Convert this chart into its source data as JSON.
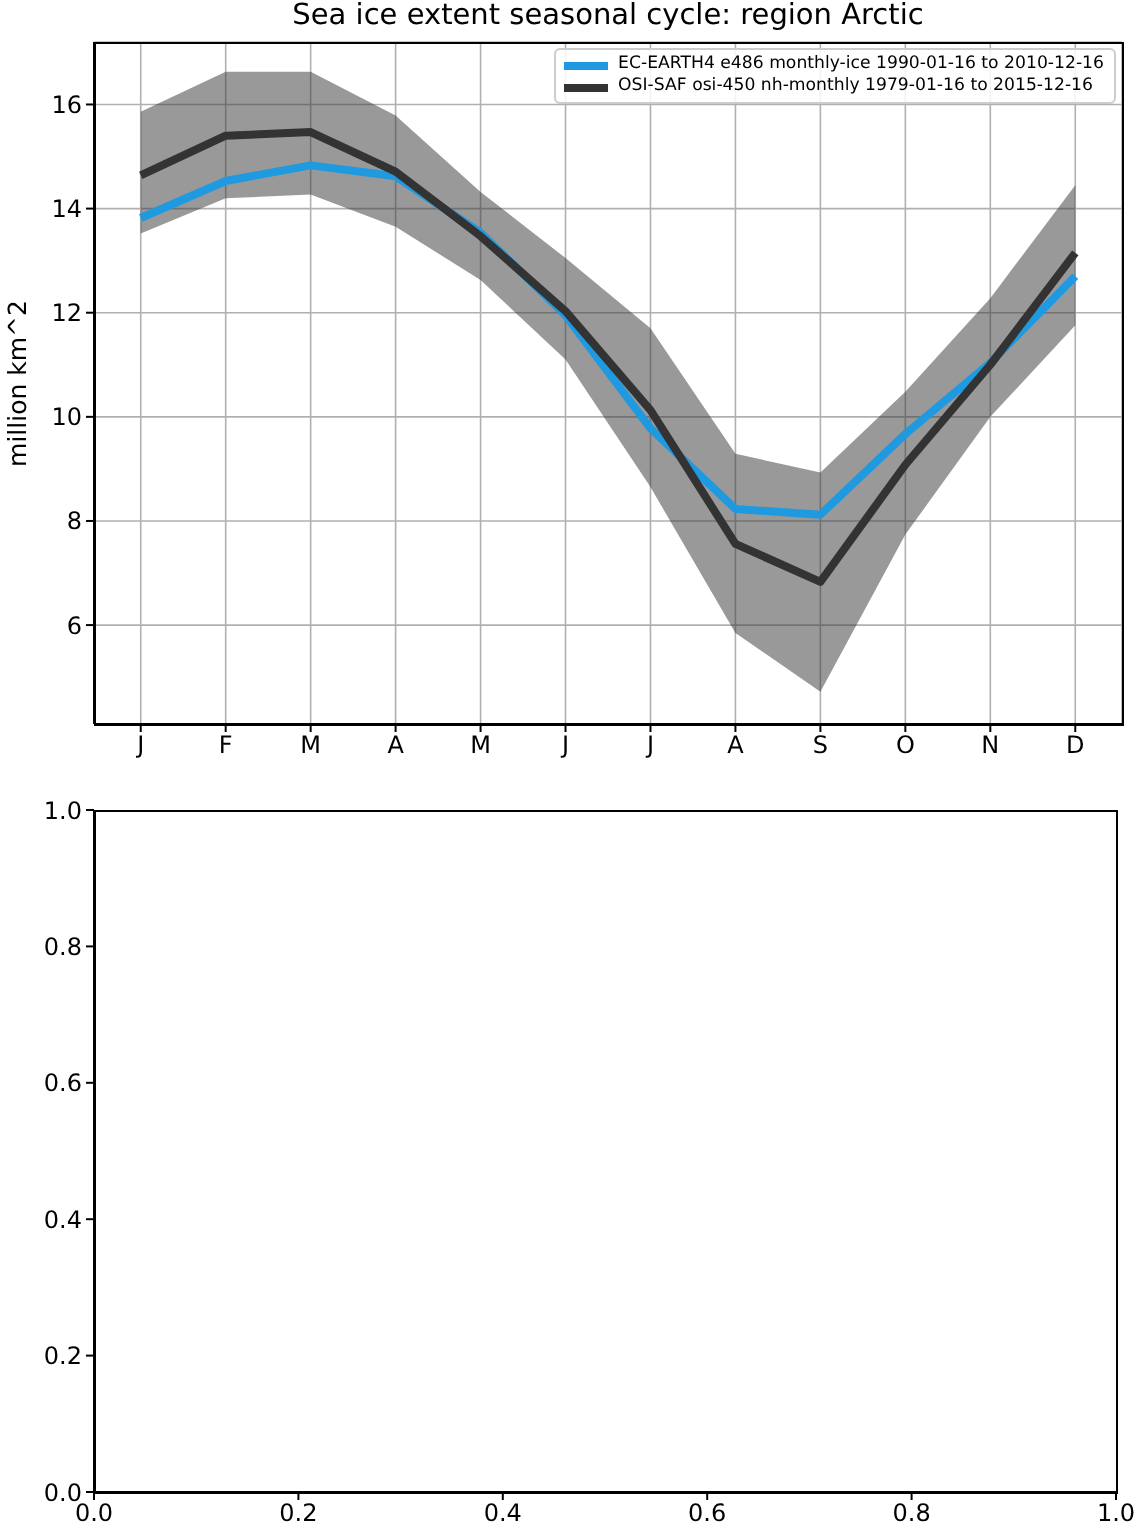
{
  "chart_data": [
    {
      "type": "line",
      "title": "Sea ice extent seasonal cycle: region Arctic",
      "ylabel": "million km^2",
      "categories": [
        "J",
        "F",
        "M",
        "A",
        "M",
        "J",
        "J",
        "A",
        "S",
        "O",
        "N",
        "D"
      ],
      "series": [
        {
          "name": "EC-EARTH4 e486 monthly-ice 1990-01-16 to 2010-12-16",
          "color": "#1f9ae0",
          "values": [
            13.82,
            14.53,
            14.83,
            14.62,
            13.54,
            11.95,
            9.78,
            8.23,
            8.12,
            9.67,
            11.04,
            12.7
          ]
        },
        {
          "name": "OSI-SAF osi-450 nh-monthly 1979-01-16 to 2015-12-16",
          "color": "#333333",
          "values": [
            14.64,
            15.4,
            15.47,
            14.71,
            13.47,
            12.03,
            10.13,
            7.56,
            6.83,
            9.08,
            11.0,
            13.15
          ],
          "lower": [
            13.52,
            14.2,
            14.27,
            13.65,
            12.63,
            11.1,
            8.65,
            5.85,
            4.72,
            7.74,
            10.0,
            11.76
          ],
          "upper": [
            15.86,
            16.63,
            16.63,
            15.79,
            14.32,
            13.05,
            11.7,
            9.29,
            8.93,
            10.48,
            12.28,
            14.45
          ]
        }
      ],
      "ylim": [
        4.1,
        17.2
      ],
      "yticks": [
        6,
        8,
        10,
        12,
        14,
        16
      ],
      "grid": true,
      "legend": "top right"
    },
    {
      "type": "line",
      "xlim": [
        0,
        1
      ],
      "ylim": [
        0,
        1
      ],
      "xticks": [
        {
          "value": 0,
          "label": "0.0"
        },
        {
          "value": 0.2,
          "label": "0.2"
        },
        {
          "value": 0.4,
          "label": "0.4"
        },
        {
          "value": 0.6,
          "label": "0.6"
        },
        {
          "value": 0.8,
          "label": "0.8"
        },
        {
          "value": 1,
          "label": "1.0"
        }
      ],
      "yticks": [
        {
          "value": 0,
          "label": "0.0"
        },
        {
          "value": 0.2,
          "label": "0.2"
        },
        {
          "value": 0.4,
          "label": "0.4"
        },
        {
          "value": 0.6,
          "label": "0.6"
        },
        {
          "value": 0.8,
          "label": "0.8"
        },
        {
          "value": 1,
          "label": "1.0"
        }
      ]
    }
  ]
}
